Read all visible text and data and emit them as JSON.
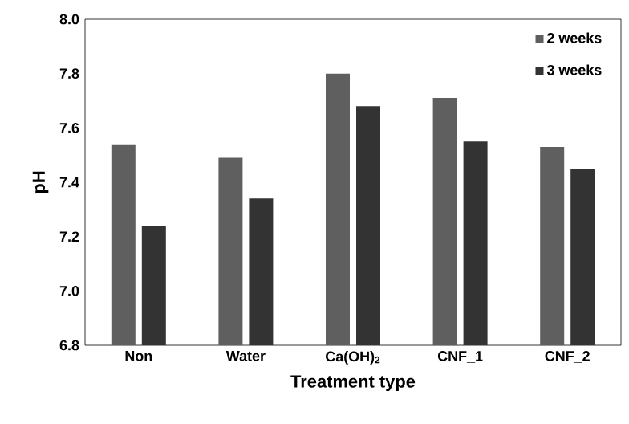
{
  "chart_data": {
    "type": "bar",
    "xlabel": "Treatment type",
    "ylabel": "pH",
    "categories": [
      "Non",
      "Water",
      "Ca(OH)$_{2}$",
      "CNF_1",
      "CNF_2"
    ],
    "series": [
      {
        "name": "2 weeks",
        "color": "#5f5f5f",
        "values": [
          7.54,
          7.49,
          7.8,
          7.71,
          7.53
        ]
      },
      {
        "name": "3 weeks",
        "color": "#333333",
        "values": [
          7.24,
          7.34,
          7.68,
          7.55,
          7.45
        ]
      }
    ],
    "ylim": [
      6.8,
      8.0
    ],
    "yticks": [
      6.8,
      {
        "value": 7,
        "label": "7.0"
      },
      7.2,
      7.4,
      7.6,
      7.8,
      {
        "value": 8,
        "label": "8.0"
      }
    ],
    "grid": false,
    "legend": "top right"
  }
}
